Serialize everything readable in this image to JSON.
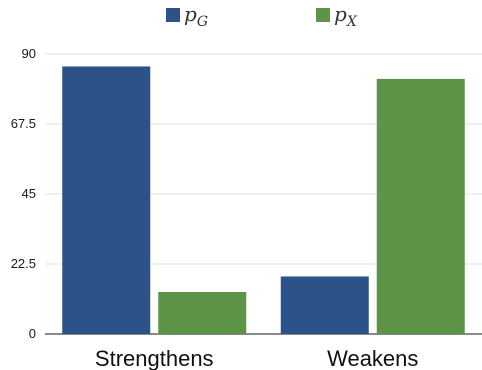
{
  "chart_data": {
    "type": "bar",
    "categories": [
      "Strengthens",
      "Weakens"
    ],
    "series": [
      {
        "name": "p",
        "name_subscript": "G",
        "values": [
          86,
          18.5
        ],
        "color": "#2c5289"
      },
      {
        "name": "p",
        "name_subscript": "X",
        "values": [
          13.5,
          82
        ],
        "color": "#5e9448"
      }
    ],
    "yticks": [
      "0",
      "22.5",
      "45",
      "67.5",
      "90"
    ],
    "ylim": [
      0,
      90
    ],
    "grid": true,
    "legend_position": "top-center"
  }
}
